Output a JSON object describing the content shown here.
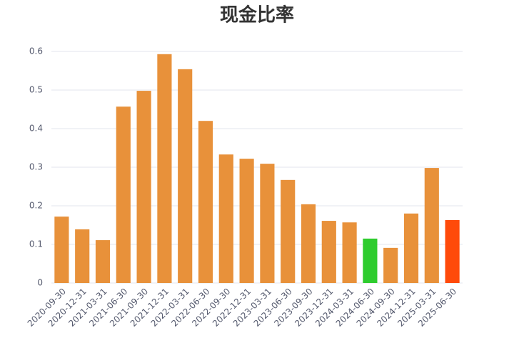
{
  "chart_data": {
    "type": "bar",
    "title": "现金比率",
    "categories": [
      "2020-09-30",
      "2020-12-31",
      "2021-03-31",
      "2021-06-30",
      "2021-09-30",
      "2021-12-31",
      "2022-03-31",
      "2022-06-30",
      "2022-09-30",
      "2022-12-31",
      "2023-03-31",
      "2023-06-30",
      "2023-09-30",
      "2023-12-31",
      "2024-03-31",
      "2024-06-30",
      "2024-09-30",
      "2024-12-31",
      "2025-03-31",
      "2025-06-30"
    ],
    "values": [
      0.172,
      0.139,
      0.111,
      0.457,
      0.498,
      0.593,
      0.554,
      0.42,
      0.333,
      0.322,
      0.309,
      0.267,
      0.204,
      0.161,
      0.157,
      0.115,
      0.091,
      0.18,
      0.298,
      0.163
    ],
    "colors": [
      "#e8913a",
      "#e8913a",
      "#e8913a",
      "#e8913a",
      "#e8913a",
      "#e8913a",
      "#e8913a",
      "#e8913a",
      "#e8913a",
      "#e8913a",
      "#e8913a",
      "#e8913a",
      "#e8913a",
      "#e8913a",
      "#e8913a",
      "#2ecc2e",
      "#e8913a",
      "#e8913a",
      "#e8913a",
      "#ff4a0a"
    ],
    "ylim": [
      0,
      0.6
    ],
    "yticks": [
      0,
      0.1,
      0.2,
      0.3,
      0.4,
      0.5,
      0.6
    ],
    "grid": true
  }
}
